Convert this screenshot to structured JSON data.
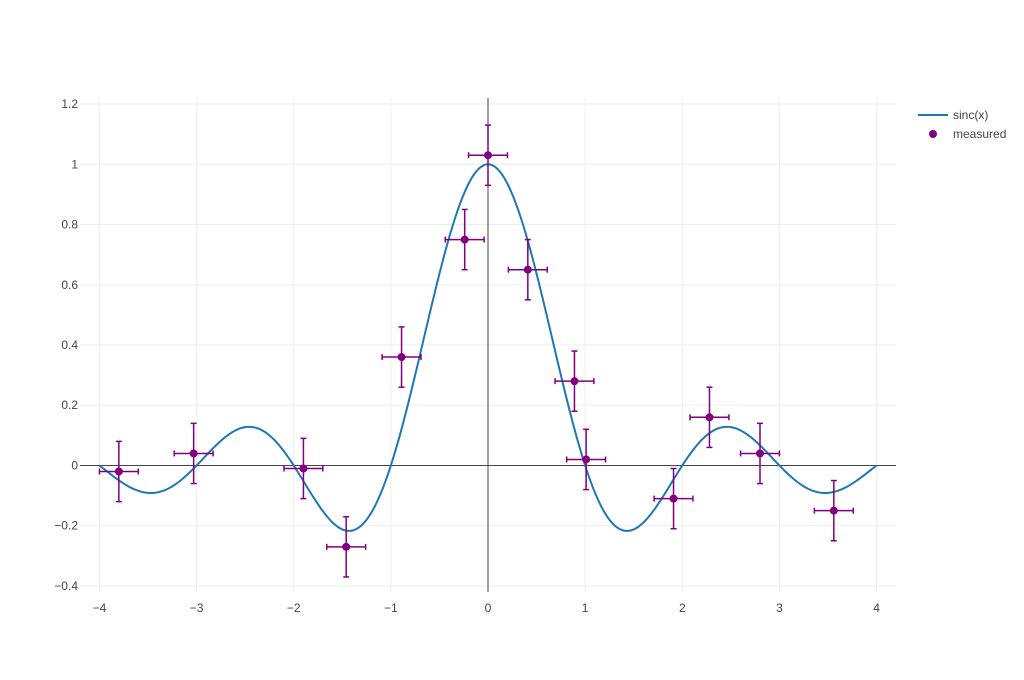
{
  "chart_data": {
    "type": "scatter",
    "title": "",
    "xlabel": "",
    "ylabel": "",
    "xlim": [
      -4.2,
      4.2
    ],
    "ylim": [
      -0.42,
      1.22
    ],
    "x_ticks": [
      -4,
      -3,
      -2,
      -1,
      0,
      1,
      2,
      3,
      4
    ],
    "x_tick_labels": [
      "−4",
      "−3",
      "−2",
      "−1",
      "0",
      "1",
      "2",
      "3",
      "4"
    ],
    "y_ticks": [
      -0.4,
      -0.2,
      0,
      0.2,
      0.4,
      0.6,
      0.8,
      1,
      1.2
    ],
    "y_tick_labels": [
      "−0.4",
      "−0.2",
      "0",
      "0.2",
      "0.4",
      "0.6",
      "0.8",
      "1",
      "1.2"
    ],
    "grid": true,
    "legend_position": "top-right",
    "series": [
      {
        "name": "sinc(x)",
        "kind": "line",
        "color": "#1f77b4",
        "function": "sin(pi*x)/(pi*x)",
        "x_range": [
          -4,
          4
        ]
      },
      {
        "name": "measured",
        "kind": "markers",
        "color": "#800080",
        "x": [
          -3.8,
          -3.03,
          -1.9,
          -1.46,
          -0.89,
          -0.24,
          0.0,
          0.41,
          0.89,
          1.01,
          1.91,
          2.28,
          2.8,
          3.56
        ],
        "y": [
          -0.02,
          0.04,
          -0.01,
          -0.27,
          0.36,
          0.75,
          1.03,
          0.65,
          0.28,
          0.02,
          -0.11,
          0.16,
          0.04,
          -0.15
        ],
        "x_error": [
          0.2,
          0.2,
          0.2,
          0.2,
          0.2,
          0.2,
          0.2,
          0.2,
          0.2,
          0.2,
          0.2,
          0.2,
          0.2,
          0.2
        ],
        "y_error": [
          0.1,
          0.1,
          0.1,
          0.1,
          0.1,
          0.1,
          0.1,
          0.1,
          0.1,
          0.1,
          0.1,
          0.1,
          0.1,
          0.1
        ]
      }
    ]
  }
}
